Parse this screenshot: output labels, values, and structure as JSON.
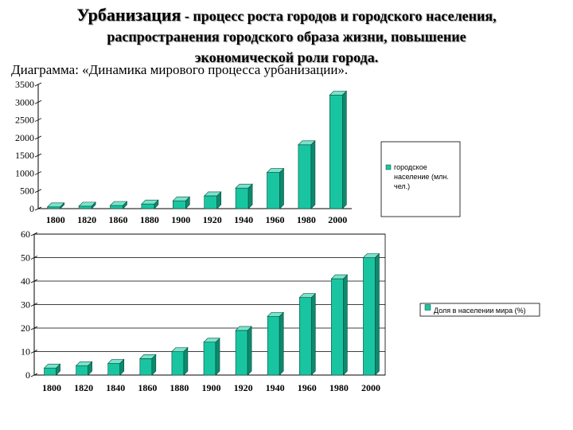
{
  "header": {
    "title_lead": "Урбанизация",
    "title_rest": " - процесс роста городов и городского населения,",
    "title_line2": "распространения городского образа жизни, повышение",
    "title_line3": "экономической роли города."
  },
  "subtitle": "Диаграмма: «Динамика мирового процесса урбанизации».",
  "colors": {
    "bar_front": "#19c5a0",
    "bar_side": "#0d8a6e",
    "bar_top": "#7be3cb"
  },
  "chart_data": [
    {
      "type": "bar",
      "categories": [
        "1800",
        "1820",
        "1860",
        "1880",
        "1900",
        "1920",
        "1940",
        "1960",
        "1980",
        "2000"
      ],
      "values": [
        50,
        70,
        90,
        130,
        220,
        360,
        580,
        1020,
        1800,
        3200
      ],
      "series": [
        {
          "name": "городское население (млн. чел.)",
          "values": [
            50,
            70,
            90,
            130,
            220,
            360,
            580,
            1020,
            1800,
            3200
          ]
        }
      ],
      "legend_lines": [
        "городское",
        "население (млн.",
        "чел.)"
      ],
      "yticks": [
        "0",
        "500",
        "1000",
        "1500",
        "2000",
        "2500",
        "3000",
        "3500"
      ],
      "ylim": [
        0,
        3500
      ],
      "grid": false,
      "legend_position": "right"
    },
    {
      "type": "bar",
      "categories": [
        "1800",
        "1820",
        "1840",
        "1860",
        "1880",
        "1900",
        "1920",
        "1940",
        "1960",
        "1980",
        "2000"
      ],
      "values": [
        3,
        4,
        5,
        7,
        10,
        14,
        19,
        25,
        33,
        41,
        50
      ],
      "series": [
        {
          "name": "Доля в населении мира (%)",
          "values": [
            3,
            4,
            5,
            7,
            10,
            14,
            19,
            25,
            33,
            41,
            50
          ]
        }
      ],
      "yticks": [
        "0",
        "10",
        "20",
        "30",
        "40",
        "50",
        "60"
      ],
      "ylim": [
        0,
        60
      ],
      "grid": true,
      "legend_position": "right"
    }
  ]
}
